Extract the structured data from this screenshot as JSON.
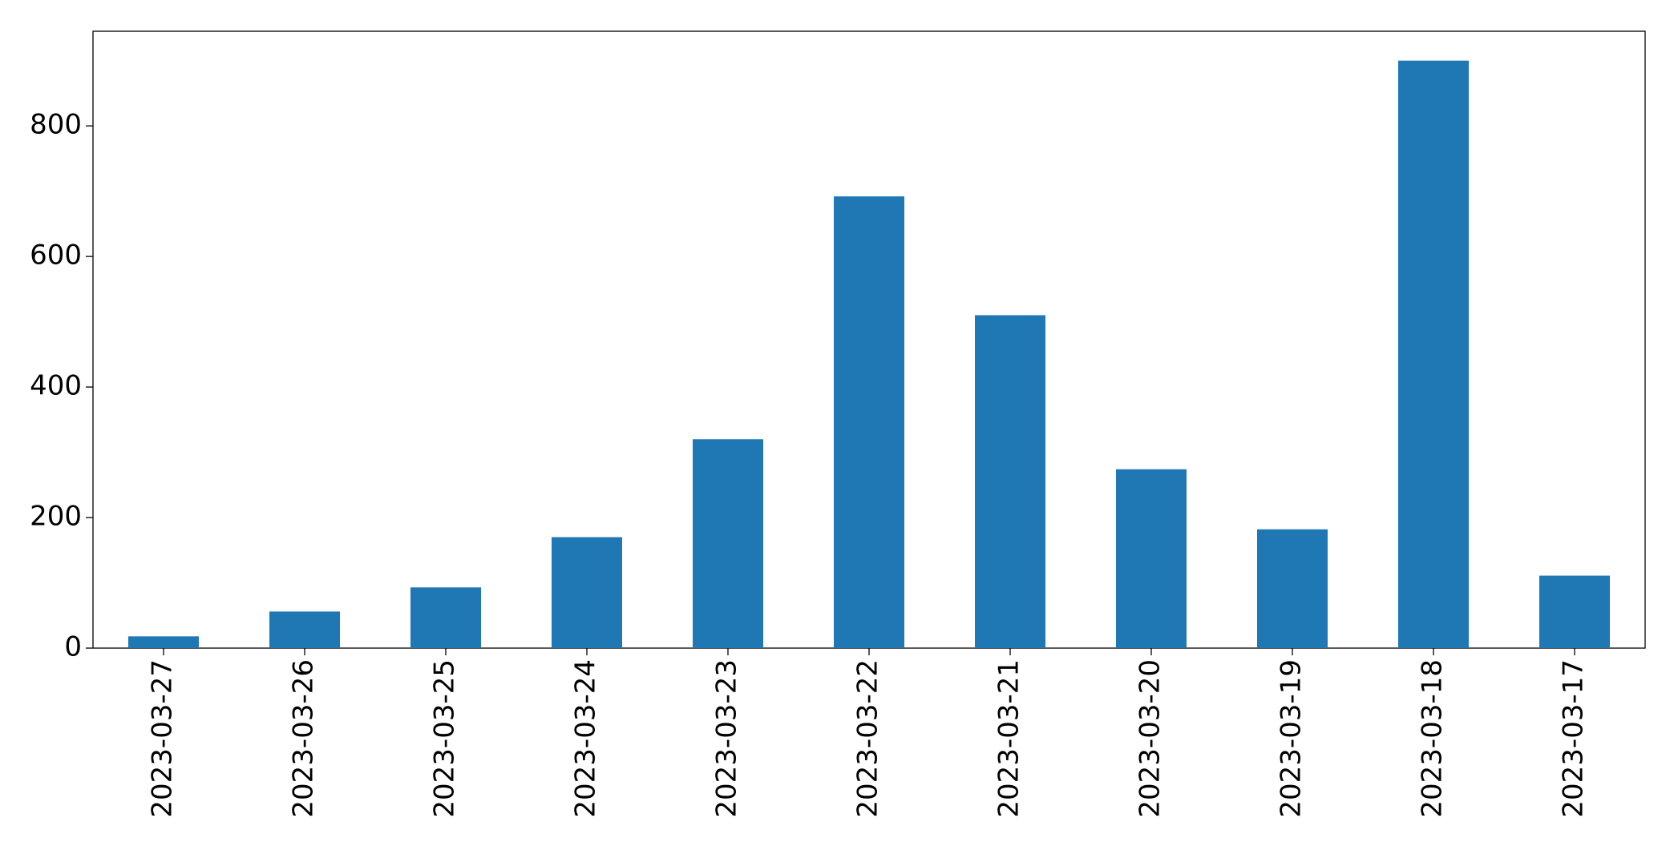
{
  "chart_data": {
    "type": "bar",
    "categories": [
      "2023-03-27",
      "2023-03-26",
      "2023-03-25",
      "2023-03-24",
      "2023-03-23",
      "2023-03-22",
      "2023-03-21",
      "2023-03-20",
      "2023-03-19",
      "2023-03-18",
      "2023-03-17"
    ],
    "values": [
      18,
      56,
      93,
      170,
      320,
      692,
      510,
      274,
      182,
      900,
      111
    ],
    "color": "#1f77b4",
    "ylim": [
      0,
      945
    ],
    "yticks": [
      0,
      200,
      400,
      600,
      800
    ],
    "grid": false
  }
}
